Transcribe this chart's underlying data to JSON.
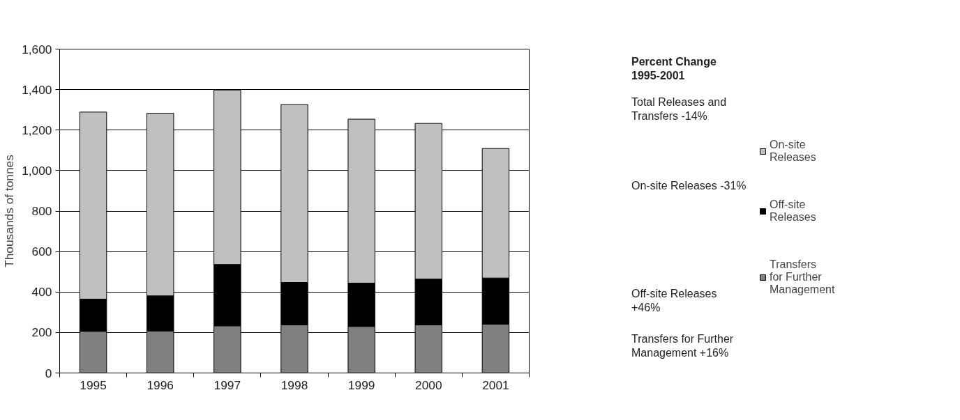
{
  "chart_data": {
    "type": "bar",
    "stacked": true,
    "ylabel": "Thousands of tonnes",
    "categories": [
      "1995",
      "1996",
      "1997",
      "1998",
      "1999",
      "2000",
      "2001"
    ],
    "series": [
      {
        "name": "Transfers for Further Management",
        "color": "#808080",
        "values": [
          206,
          208,
          233,
          238,
          230,
          238,
          241
        ]
      },
      {
        "name": "Off-site Releases",
        "color": "#000000",
        "values": [
          159,
          173,
          303,
          209,
          214,
          226,
          228
        ]
      },
      {
        "name": "On-site Releases",
        "color": "#c0c0c0",
        "values": [
          924,
          902,
          862,
          879,
          810,
          769,
          640
        ]
      }
    ],
    "ylim": [
      0,
      1600
    ],
    "yticks": [
      {
        "value": 0,
        "label": "0"
      },
      {
        "value": 200,
        "label": "200"
      },
      {
        "value": 400,
        "label": "400"
      },
      {
        "value": 600,
        "label": "600"
      },
      {
        "value": 800,
        "label": "800"
      },
      {
        "value": 1000,
        "label": "1,000"
      },
      {
        "value": 1200,
        "label": "1,200"
      },
      {
        "value": 1400,
        "label": "1,400"
      },
      {
        "value": 1600,
        "label": "1,600"
      }
    ],
    "grid": "y",
    "legend": "right",
    "annotations": [
      "Percent Change 1995-2001",
      "Total Releases and Transfers  -14%",
      "On-site Releases  -31%",
      "Off-site Releases  +46%",
      "Transfers for Further Management  +16%"
    ]
  }
}
